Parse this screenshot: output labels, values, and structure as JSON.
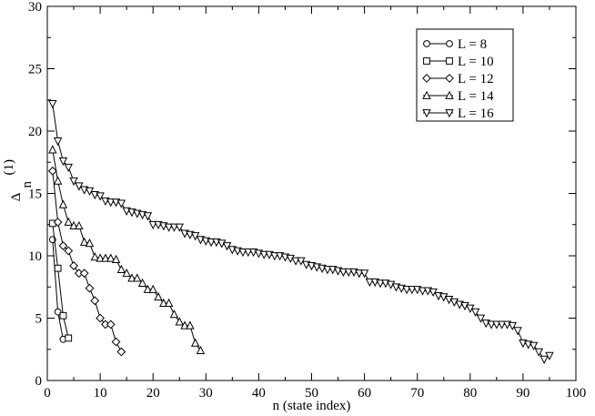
{
  "chart_data": {
    "type": "line",
    "title": "",
    "xlabel": "n  (state index)",
    "ylabel": {
      "main": "Δ",
      "sub": "n",
      "sup": "(1)"
    },
    "xlim": [
      0,
      100
    ],
    "ylim": [
      0,
      30
    ],
    "xticks": [
      0,
      10,
      20,
      30,
      40,
      50,
      60,
      70,
      80,
      90,
      100
    ],
    "yticks": [
      0,
      5,
      10,
      15,
      20,
      25,
      30
    ],
    "grid": false,
    "legend_position": "top-right",
    "series": [
      {
        "name": "L = 8",
        "marker": "circle",
        "x": [
          1,
          2,
          3
        ],
        "y": [
          11.3,
          5.5,
          3.3
        ]
      },
      {
        "name": "L = 10",
        "marker": "square",
        "x": [
          1,
          2,
          3,
          4
        ],
        "y": [
          12.6,
          9.0,
          5.2,
          3.4
        ]
      },
      {
        "name": "L = 12",
        "marker": "diamond",
        "x": [
          1,
          2,
          3,
          4,
          5,
          6,
          7,
          8,
          9,
          10,
          11,
          12,
          13,
          14
        ],
        "y": [
          16.8,
          12.7,
          10.8,
          10.4,
          9.2,
          8.6,
          8.6,
          7.4,
          6.4,
          5.0,
          4.5,
          4.5,
          3.1,
          2.3
        ]
      },
      {
        "name": "L = 14",
        "marker": "triangle-up",
        "x": [
          1,
          2,
          3,
          4,
          5,
          6,
          7,
          8,
          9,
          10,
          11,
          12,
          13,
          14,
          15,
          16,
          17,
          18,
          19,
          20,
          21,
          22,
          23,
          24,
          25,
          26,
          27,
          28,
          29
        ],
        "y": [
          18.5,
          16.0,
          14.1,
          12.7,
          12.4,
          12.4,
          11.1,
          11.0,
          9.9,
          9.8,
          9.8,
          9.8,
          9.7,
          8.9,
          8.6,
          8.2,
          8.2,
          7.8,
          7.3,
          7.3,
          6.7,
          6.2,
          6.2,
          5.3,
          4.7,
          4.4,
          4.4,
          3.0,
          2.4
        ]
      },
      {
        "name": "L = 16",
        "marker": "triangle-down",
        "x": [
          1,
          2,
          3,
          4,
          5,
          6,
          7,
          8,
          9,
          10,
          11,
          12,
          13,
          14,
          15,
          16,
          17,
          18,
          19,
          20,
          21,
          22,
          23,
          24,
          25,
          26,
          27,
          28,
          29,
          30,
          31,
          32,
          33,
          34,
          35,
          36,
          37,
          38,
          39,
          40,
          41,
          42,
          43,
          44,
          45,
          46,
          47,
          48,
          49,
          50,
          51,
          52,
          53,
          54,
          55,
          56,
          57,
          58,
          59,
          60,
          61,
          62,
          63,
          64,
          65,
          66,
          67,
          68,
          69,
          70,
          71,
          72,
          73,
          74,
          75,
          76,
          77,
          78,
          79,
          80,
          81,
          82,
          83,
          84,
          85,
          86,
          87,
          88,
          89,
          90,
          91,
          92,
          93,
          94,
          95
        ],
        "y": [
          22.2,
          19.2,
          17.6,
          17.1,
          16.0,
          15.6,
          15.3,
          15.2,
          14.9,
          14.8,
          14.4,
          14.3,
          14.3,
          14.2,
          13.6,
          13.5,
          13.4,
          13.3,
          13.2,
          12.5,
          12.5,
          12.4,
          12.3,
          12.3,
          12.3,
          11.8,
          11.7,
          11.6,
          11.3,
          11.2,
          11.1,
          11.1,
          11.0,
          10.8,
          10.5,
          10.4,
          10.3,
          10.3,
          10.3,
          10.2,
          10.1,
          10.1,
          10.0,
          10.0,
          9.9,
          9.8,
          9.6,
          9.6,
          9.3,
          9.2,
          9.1,
          9.0,
          8.9,
          8.9,
          8.8,
          8.7,
          8.7,
          8.7,
          8.6,
          8.6,
          7.9,
          7.9,
          7.8,
          7.8,
          7.7,
          7.5,
          7.4,
          7.3,
          7.3,
          7.3,
          7.2,
          7.2,
          7.1,
          6.8,
          6.7,
          6.5,
          6.3,
          6.1,
          6.0,
          5.8,
          5.5,
          5.0,
          4.6,
          4.5,
          4.5,
          4.5,
          4.5,
          4.4,
          4.0,
          3.0,
          2.9,
          2.8,
          2.3,
          1.7,
          2.0
        ]
      }
    ]
  }
}
